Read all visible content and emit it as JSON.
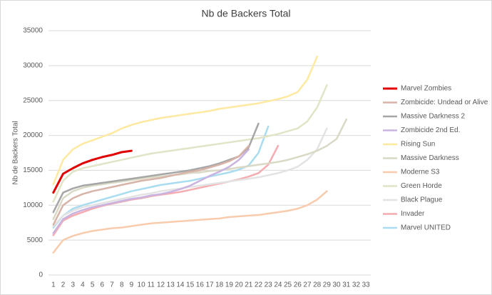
{
  "chart_data": {
    "type": "line",
    "title": "Nb de Backers Total",
    "y_label": "Nb de Backers Total",
    "categories": [
      "1",
      "2",
      "3",
      "4",
      "5",
      "6",
      "7",
      "8",
      "9",
      "10",
      "11",
      "12",
      "13",
      "14",
      "15",
      "16",
      "17",
      "18",
      "19",
      "20",
      "21",
      "22",
      "23",
      "24",
      "25",
      "26",
      "27",
      "28",
      "29",
      "30",
      "31",
      "32",
      "33"
    ],
    "ylim": [
      0,
      35000
    ],
    "yticks": [
      0,
      5000,
      10000,
      15000,
      20000,
      25000,
      30000,
      35000
    ],
    "grid": true,
    "legend": "right",
    "series": [
      {
        "name": "Marvel Zombies",
        "color": "#e00000",
        "values": [
          11800,
          14500,
          15300,
          16000,
          16500,
          16900,
          17200,
          17600,
          17800,
          null,
          null,
          null,
          null,
          null,
          null,
          null,
          null,
          null,
          null,
          null,
          null,
          null,
          null,
          null,
          null,
          null,
          null,
          null,
          null,
          null,
          null,
          null,
          null
        ]
      },
      {
        "name": "Zombicide: Undead or Alive",
        "color": "#d8b4a8",
        "values": [
          7200,
          10000,
          11000,
          11600,
          12000,
          12300,
          12600,
          12900,
          13200,
          13500,
          13700,
          13900,
          14200,
          14500,
          14800,
          15000,
          15400,
          15800,
          16300,
          17000,
          18500,
          null,
          null,
          null,
          null,
          null,
          null,
          null,
          null,
          null,
          null,
          null,
          null
        ]
      },
      {
        "name": "Massive Darkness 2",
        "color": "#a6a6a6",
        "values": [
          9000,
          11800,
          12400,
          12800,
          13000,
          13200,
          13400,
          13600,
          13800,
          14000,
          14200,
          14400,
          14600,
          14800,
          15000,
          15300,
          15600,
          16000,
          16500,
          17000,
          18300,
          21700,
          null,
          null,
          null,
          null,
          null,
          null,
          null,
          null,
          null,
          null,
          null
        ]
      },
      {
        "name": "Zombicide 2nd Ed.",
        "color": "#c9b3e0",
        "values": [
          6000,
          8000,
          8800,
          9300,
          9700,
          10000,
          10300,
          10600,
          10900,
          11100,
          11400,
          11600,
          11900,
          12300,
          12800,
          13500,
          14200,
          14800,
          15500,
          16500,
          18000,
          null,
          null,
          null,
          null,
          null,
          null,
          null,
          null,
          null,
          null,
          null,
          null
        ]
      },
      {
        "name": "Rising Sun",
        "color": "#fde9a0",
        "values": [
          13000,
          16500,
          18000,
          18800,
          19300,
          19800,
          20300,
          21000,
          21500,
          21900,
          22200,
          22500,
          22700,
          22900,
          23100,
          23300,
          23500,
          23800,
          24000,
          24200,
          24400,
          24600,
          24900,
          25200,
          25600,
          26200,
          28000,
          31300,
          null,
          null,
          null,
          null,
          null
        ]
      },
      {
        "name": "Massive Darkness",
        "color": "#d9d9c6",
        "values": [
          8000,
          11000,
          12000,
          12500,
          12800,
          13000,
          13200,
          13400,
          13600,
          13800,
          14000,
          14100,
          14300,
          14400,
          14600,
          14700,
          14900,
          15000,
          15200,
          15400,
          15600,
          15800,
          16000,
          16200,
          16500,
          16900,
          17300,
          17800,
          18500,
          19500,
          22300,
          null,
          null
        ]
      },
      {
        "name": "Moderne S3",
        "color": "#f8cbad",
        "values": [
          3200,
          5000,
          5600,
          6000,
          6300,
          6500,
          6700,
          6800,
          7000,
          7200,
          7400,
          7500,
          7600,
          7700,
          7800,
          7900,
          8000,
          8100,
          8300,
          8400,
          8500,
          8600,
          8800,
          9000,
          9200,
          9500,
          10000,
          10800,
          12000,
          null,
          null,
          null,
          null
        ]
      },
      {
        "name": "Green Horde",
        "color": "#e2e4c8",
        "values": [
          10500,
          13500,
          14800,
          15300,
          15600,
          15900,
          16200,
          16500,
          16800,
          17100,
          17400,
          17600,
          17800,
          18000,
          18200,
          18400,
          18600,
          18800,
          19000,
          19200,
          19400,
          19600,
          19900,
          20200,
          20600,
          21000,
          22000,
          24000,
          27200,
          null,
          null,
          null,
          null
        ]
      },
      {
        "name": "Black Plague",
        "color": "#e3e3e3",
        "values": [
          7000,
          8500,
          9200,
          9700,
          10000,
          10300,
          10600,
          10900,
          11200,
          11500,
          11700,
          12000,
          12200,
          12400,
          12600,
          12800,
          13000,
          13200,
          13400,
          13600,
          13800,
          14000,
          14300,
          14600,
          15000,
          15500,
          16500,
          18000,
          21000,
          null,
          null,
          null,
          null
        ]
      },
      {
        "name": "Invader",
        "color": "#f4acb0",
        "values": [
          5700,
          7800,
          8500,
          9000,
          9500,
          9900,
          10200,
          10500,
          10800,
          11000,
          11300,
          11500,
          11700,
          11900,
          12200,
          12500,
          12800,
          13100,
          13400,
          13700,
          14100,
          14600,
          15800,
          18500,
          null,
          null,
          null,
          null,
          null,
          null,
          null,
          null,
          null
        ]
      },
      {
        "name": "Marvel UNITED",
        "color": "#a9dcf0",
        "values": [
          6800,
          8500,
          9500,
          10000,
          10400,
          10800,
          11200,
          11600,
          12000,
          12300,
          12600,
          12900,
          13100,
          13300,
          13500,
          13800,
          14100,
          14400,
          14700,
          15100,
          15700,
          17500,
          21300,
          null,
          null,
          null,
          null,
          null,
          null,
          null,
          null,
          null,
          null
        ]
      }
    ]
  }
}
